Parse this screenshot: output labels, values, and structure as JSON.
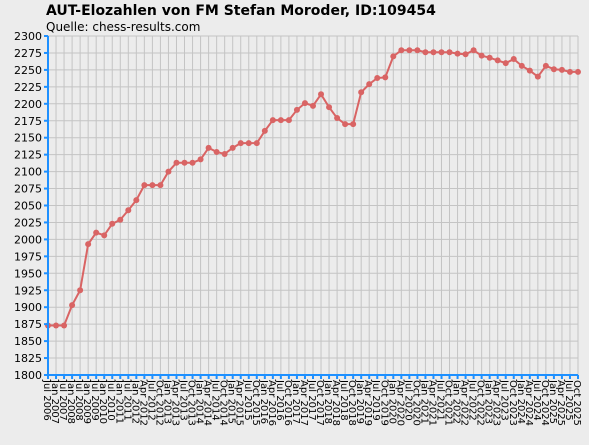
{
  "chart_data": {
    "type": "line",
    "title": "AUT-Elozahlen von FM Stefan Moroder, ID:109454",
    "subtitle": "Quelle: chess-results.com",
    "categories": [
      "Jul 2006",
      "Jan 2007",
      "Jul 2007",
      "Jan 2008",
      "Jul 2008",
      "Jan 2009",
      "Jul 2009",
      "Jan 2010",
      "Jul 2010",
      "Jan 2011",
      "Jul 2011",
      "Jan 2012",
      "Apr 2012",
      "Jul 2012",
      "Oct 2012",
      "Jan 2013",
      "Apr 2013",
      "Jul 2013",
      "Oct 2013",
      "Jan 2014",
      "Apr 2014",
      "Jul 2014",
      "Oct 2014",
      "Jan 2015",
      "Apr 2015",
      "Jul 2015",
      "Oct 2015",
      "Jan 2016",
      "Apr 2016",
      "Jul 2016",
      "Oct 2016",
      "Jan 2017",
      "Apr 2017",
      "Jul 2017",
      "Oct 2017",
      "Jan 2018",
      "Apr 2018",
      "Jul 2018",
      "Oct 2018",
      "Jan 2019",
      "Apr 2019",
      "Jul 2019",
      "Oct 2019",
      "Jan 2020",
      "Apr 2020",
      "Jul 2020",
      "Oct 2020",
      "Jan 2021",
      "Apr 2021",
      "Jul 2021",
      "Oct 2021",
      "Jan 2022",
      "Apr 2022",
      "Jul 2022",
      "Oct 2022",
      "Jan 2023",
      "Apr 2023",
      "Jul 2023",
      "Oct 2023",
      "Jan 2024",
      "Apr 2024",
      "Jul 2024",
      "Oct 2024",
      "Jan 2025",
      "Apr 2025",
      "Jul 2025",
      "Oct 2025"
    ],
    "values": [
      1873,
      1873,
      1873,
      1903,
      1925,
      1993,
      2010,
      2006,
      2023,
      2029,
      2043,
      2058,
      2080,
      2080,
      2080,
      2100,
      2113,
      2113,
      2113,
      2118,
      2135,
      2129,
      2126,
      2135,
      2142,
      2142,
      2142,
      2160,
      2176,
      2176,
      2176,
      2191,
      2201,
      2197,
      2214,
      2195,
      2179,
      2170,
      2170,
      2217,
      2229,
      2238,
      2239,
      2270,
      2279,
      2279,
      2279,
      2276,
      2276,
      2276,
      2276,
      2274,
      2273,
      2279,
      2271,
      2268,
      2264,
      2260,
      2266,
      2256,
      2249,
      2240,
      2256,
      2251,
      2250,
      2247,
      2247
    ],
    "color": "#d96464",
    "ylim": [
      1800,
      2300
    ],
    "yticks": [
      1800,
      1825,
      1850,
      1875,
      1900,
      1925,
      1950,
      1975,
      2000,
      2025,
      2050,
      2075,
      2100,
      2125,
      2150,
      2175,
      2200,
      2225,
      2250,
      2275,
      2300
    ],
    "grid": true
  }
}
